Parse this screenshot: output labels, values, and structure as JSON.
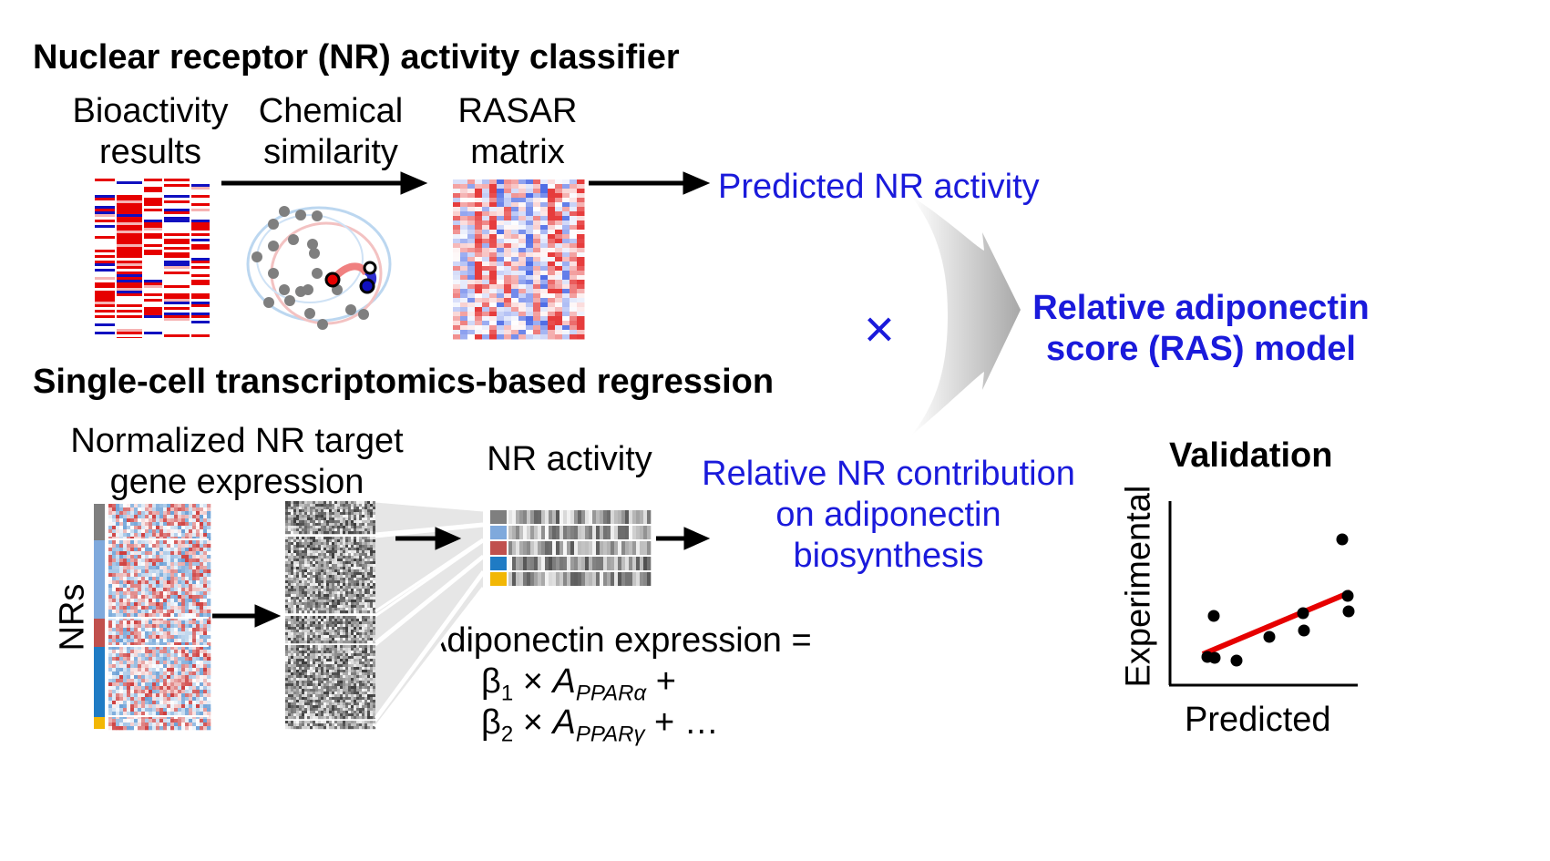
{
  "top": {
    "title": "Nuclear receptor (NR) activity classifier",
    "bioactivity_label_1": "Bioactivity",
    "bioactivity_label_2": "results",
    "chemsim_label_1": "Chemical",
    "chemsim_label_2": "similarity",
    "rasar_label_1": "RASAR",
    "rasar_label_2": "matrix",
    "output": "Predicted NR activity"
  },
  "bottom": {
    "title": "Single-cell transcriptomics-based regression",
    "expression_label_1": "Normalized NR target",
    "expression_label_2": "gene expression",
    "nrs_label": "NRs",
    "activity_label": "NR activity",
    "output_1": "Relative NR contribution",
    "output_2": "on adiponectin",
    "output_3": "biosynthesis",
    "equation": {
      "line1": "Adiponectin expression =",
      "beta": "β",
      "sub1": "1",
      "sub2": "2",
      "times": "×",
      "A": "A",
      "sub_alpha": "PPARα",
      "sub_gamma": "PPARγ",
      "plus": "+",
      "ellipsis": "+ …"
    }
  },
  "combine": {
    "times_symbol": "×",
    "result_1": "Relative adiponectin",
    "result_2": "score (RAS) model"
  },
  "validation": {
    "title": "Validation",
    "xlabel": "Predicted",
    "ylabel": "Experimental"
  },
  "colors": {
    "accent_blue": "#1a1adb",
    "heat_red": "#e60000",
    "heat_blue": "#1010c0",
    "fit_line": "#e60000",
    "bar_gray": "#7f7f7f",
    "bar_lightblue": "#7fa9dc",
    "bar_red": "#c0504d",
    "bar_blue": "#1f7bc4",
    "bar_yellow": "#f2b705"
  }
}
